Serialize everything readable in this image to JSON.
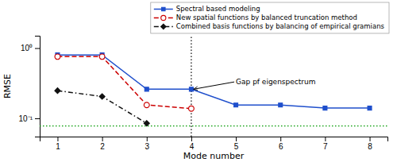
{
  "chart_data": {
    "type": "line",
    "x": [
      1,
      2,
      3,
      4,
      5,
      6,
      7,
      8
    ],
    "series": [
      {
        "name": "Spectral based modeling",
        "color": "#1F4FCC",
        "marker": "square",
        "line_style": "solid",
        "values": [
          0.8,
          0.8,
          0.26,
          0.26,
          0.155,
          0.155,
          0.14,
          0.14
        ]
      },
      {
        "name": "New spatial functions by balanced truncation  method",
        "color": "#CC0000",
        "marker": "circle",
        "line_style": "dashed",
        "values": [
          0.755,
          0.755,
          0.155,
          0.138,
          null,
          null,
          null,
          null
        ]
      },
      {
        "name": "Combined basis functions by balancing of empirical gramians",
        "color": "#111111",
        "marker": "diamond",
        "line_style": "dashdot",
        "values": [
          0.248,
          0.205,
          0.085,
          null,
          null,
          null,
          null,
          null
        ]
      }
    ],
    "hline": {
      "value": 0.078,
      "color": "#009900",
      "line_style": "dotted"
    },
    "vline": {
      "value": 4,
      "color": "#000000",
      "line_style": "dotted"
    },
    "annotations": [
      {
        "text": "Gap pf eigenspectrum",
        "x": 5.0,
        "y": 0.33,
        "arrow_x": 4.05,
        "arrow_y": 0.26
      }
    ],
    "xlabel": "Mode number",
    "ylabel": "RMSE",
    "xlim": [
      0.6,
      8.4
    ],
    "ylim": [
      0.055,
      1.5
    ],
    "xticks": [
      1,
      2,
      3,
      4,
      5,
      6,
      7,
      8
    ],
    "yticks": [
      {
        "value": 0.1,
        "label": "10⁻¹"
      },
      {
        "value": 1,
        "label": "10⁰"
      }
    ],
    "log": "y",
    "grid": false,
    "legend": "upper right"
  }
}
